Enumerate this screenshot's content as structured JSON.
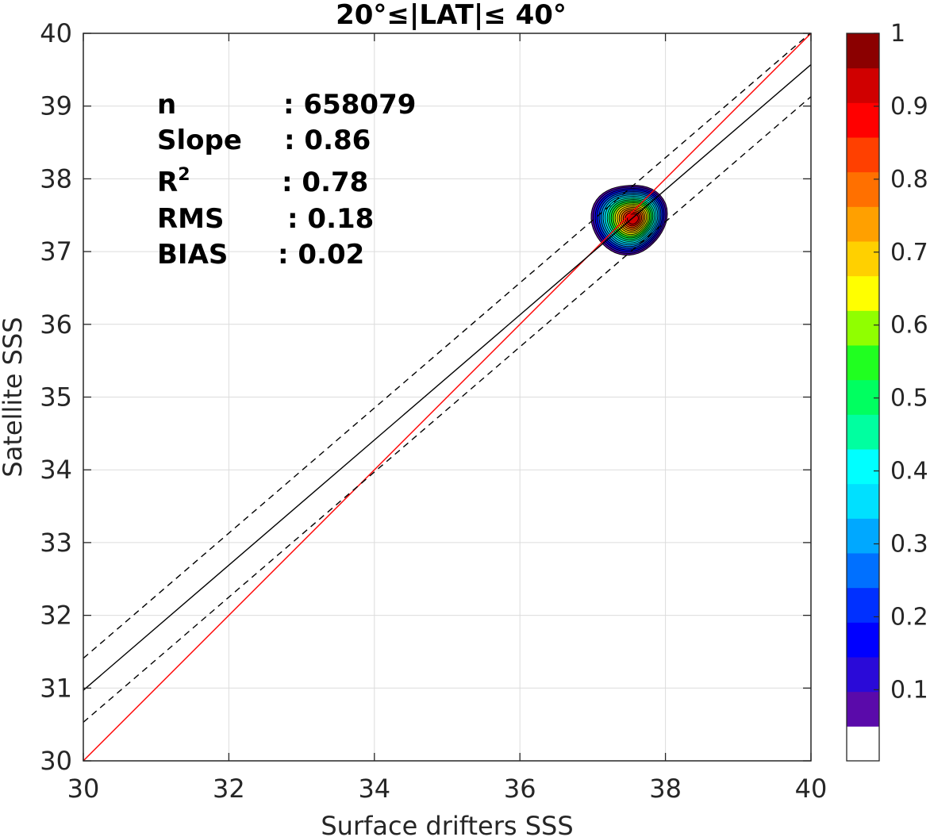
{
  "chart_data": {
    "type": "contour-scatter",
    "title": "20°≤|LAT|≤ 40°",
    "xlabel": "Surface drifters SSS",
    "ylabel": "Satellite SSS",
    "xlim": [
      30,
      40
    ],
    "ylim": [
      30,
      40
    ],
    "xticks": [
      30,
      32,
      34,
      36,
      38,
      40
    ],
    "yticks": [
      30,
      31,
      32,
      33,
      34,
      35,
      36,
      37,
      38,
      39,
      40
    ],
    "grid": true,
    "stats": [
      {
        "label": "n",
        "value": ": 658079"
      },
      {
        "label": "Slope",
        "value": ": 0.86"
      },
      {
        "label": "R",
        "sup": "2",
        "value": ": 0.78"
      },
      {
        "label": "RMS",
        "value": ": 0.18"
      },
      {
        "label": "BIAS",
        "value": ": 0.02"
      }
    ],
    "lines": [
      {
        "role": "one-to-one",
        "color": "#ff0000",
        "style": "solid",
        "x": [
          30,
          40
        ],
        "y": [
          30,
          40
        ]
      },
      {
        "role": "regression",
        "color": "#000000",
        "style": "solid",
        "x": [
          30,
          40
        ],
        "y": [
          30.97,
          39.57
        ]
      },
      {
        "role": "regression-upper",
        "color": "#000000",
        "style": "dashed",
        "x": [
          30,
          40
        ],
        "y": [
          31.41,
          40.01
        ]
      },
      {
        "role": "regression-lower",
        "color": "#000000",
        "style": "dashed",
        "x": [
          30,
          40
        ],
        "y": [
          30.53,
          39.13
        ]
      }
    ],
    "density": {
      "center": [
        37.5,
        37.45
      ],
      "levels": [
        0.05,
        0.1,
        0.15,
        0.2,
        0.25,
        0.3,
        0.35,
        0.4,
        0.45,
        0.5,
        0.55,
        0.6,
        0.65,
        0.7,
        0.75,
        0.8,
        0.85,
        0.9,
        0.95
      ],
      "outer_extent_x": [
        37.0,
        38.0
      ],
      "outer_extent_y": [
        36.95,
        37.95
      ]
    },
    "colorbar": {
      "ticks": [
        "0.1",
        "0.2",
        "0.3",
        "0.4",
        "0.5",
        "0.6",
        "0.7",
        "0.8",
        "0.9",
        "1"
      ],
      "tick_values": [
        0.1,
        0.2,
        0.3,
        0.4,
        0.5,
        0.6,
        0.7,
        0.8,
        0.9,
        1.0
      ],
      "colors": [
        "#ffffff",
        "#5a0aaa",
        "#2a0ad8",
        "#0000ff",
        "#0030ff",
        "#0070ff",
        "#00a8ff",
        "#00e0ff",
        "#00ffff",
        "#00ffa0",
        "#00ff60",
        "#20ff20",
        "#90ff00",
        "#ffff00",
        "#ffd000",
        "#ffa000",
        "#ff7000",
        "#ff4000",
        "#ff0000",
        "#d00000",
        "#8b0000"
      ]
    }
  }
}
